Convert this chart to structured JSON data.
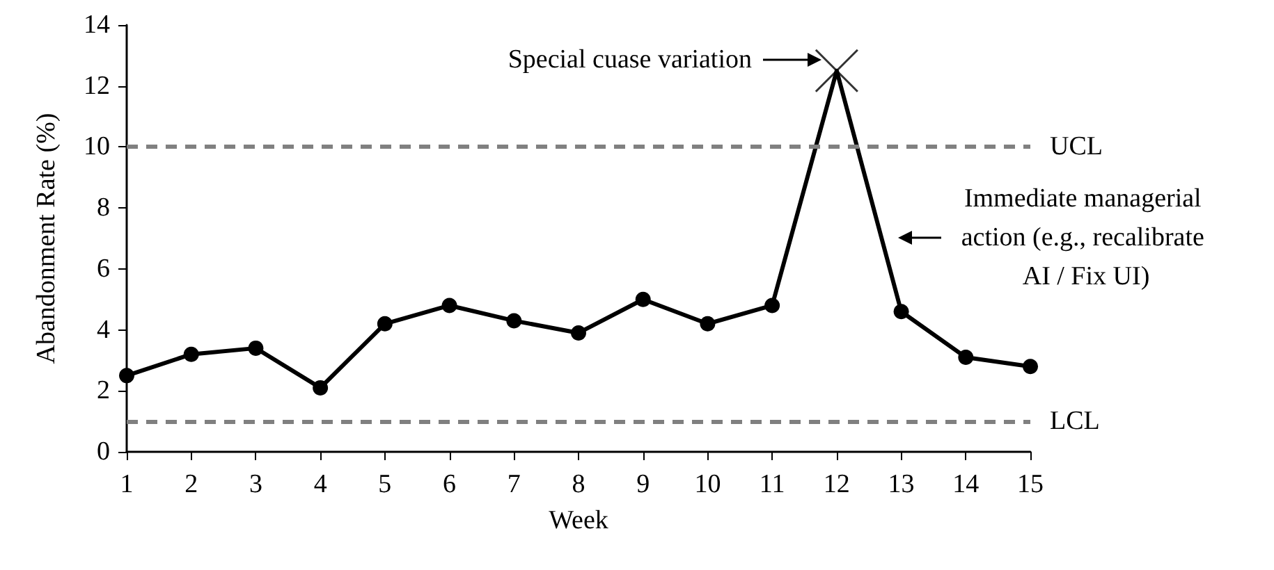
{
  "chart_data": {
    "type": "line",
    "xlabel": "Week",
    "ylabel": "Abandonment Rate (%)",
    "x": [
      1,
      2,
      3,
      4,
      5,
      6,
      7,
      8,
      9,
      10,
      11,
      12,
      13,
      14,
      15
    ],
    "series": [
      {
        "color": "#000000",
        "marker": "circle",
        "values": [
          2.5,
          3.2,
          3.4,
          2.1,
          4.2,
          4.8,
          4.3,
          3.9,
          5.0,
          4.2,
          4.8,
          12.5,
          4.6,
          3.1,
          2.8
        ]
      },
      {
        "type": "scatter",
        "color": "#000000",
        "marker": "cross",
        "x": [
          12
        ],
        "values": [
          12.5
        ]
      }
    ],
    "xlim": [
      1,
      15
    ],
    "xticks": [
      1,
      2,
      3,
      4,
      5,
      6,
      7,
      8,
      9,
      10,
      11,
      12,
      13,
      14,
      15
    ],
    "ylim": [
      0,
      14
    ],
    "yticks": [
      0,
      2,
      4,
      6,
      8,
      10,
      12,
      14
    ],
    "grid": false,
    "ref_lines": [
      {
        "axis": "y",
        "value": 10,
        "label": "UCL",
        "color": "#808080",
        "line_style": "dashed"
      },
      {
        "axis": "y",
        "value": 1,
        "label": "LCL",
        "color": "#808080",
        "line_style": "dashed"
      }
    ],
    "annotations": [
      "Special cuase variation",
      "Immediate managerial action (e.g., recalibrate AI / Fix UI)"
    ]
  }
}
